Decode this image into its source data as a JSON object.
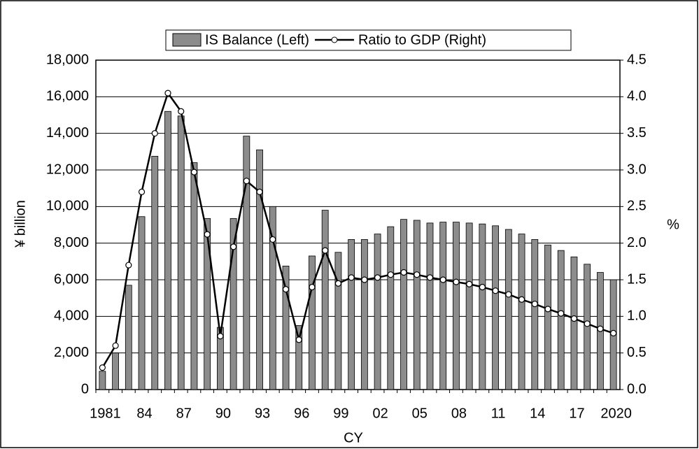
{
  "chart_data": {
    "type": "bar",
    "xlabel": "CY",
    "ylabel": "¥ billion",
    "y2label": "%",
    "categories": [
      "1981",
      null,
      null,
      "84",
      null,
      null,
      "87",
      null,
      null,
      "90",
      null,
      null,
      "93",
      null,
      null,
      "96",
      null,
      null,
      "99",
      null,
      null,
      "02",
      null,
      null,
      "05",
      null,
      null,
      "08",
      null,
      null,
      "11",
      null,
      null,
      "14",
      null,
      null,
      "17",
      null,
      null,
      "2020"
    ],
    "series": [
      {
        "name": "IS Balance (Left)",
        "type": "bar",
        "axis": "y",
        "color": "#8c8c8c",
        "values": [
          1000,
          2000,
          5700,
          9450,
          12750,
          15200,
          14950,
          12400,
          9350,
          3400,
          9350,
          13850,
          13100,
          10000,
          6750,
          3500,
          7300,
          9800,
          7500,
          8200,
          8200,
          8500,
          8900,
          9300,
          9250,
          9100,
          9150,
          9150,
          9100,
          9050,
          8950,
          8750,
          8500,
          8200,
          7900,
          7600,
          7250,
          6850,
          6400,
          6000
        ]
      },
      {
        "name": "Ratio to GDP (Right)",
        "type": "line",
        "axis": "y2",
        "color": "#000000",
        "values": [
          0.3,
          0.6,
          1.7,
          2.7,
          3.5,
          4.05,
          3.8,
          2.97,
          2.12,
          0.73,
          1.95,
          2.85,
          2.7,
          2.05,
          1.37,
          0.68,
          1.4,
          1.9,
          1.45,
          1.53,
          1.5,
          1.53,
          1.57,
          1.6,
          1.57,
          1.53,
          1.5,
          1.47,
          1.44,
          1.4,
          1.35,
          1.3,
          1.23,
          1.17,
          1.1,
          1.04,
          0.97,
          0.9,
          0.83,
          0.77
        ]
      }
    ],
    "ylim": [
      0,
      18000
    ],
    "yticks": [
      0,
      {
        "value": 2000,
        "label": "2,000"
      },
      {
        "value": 4000,
        "label": "4,000"
      },
      {
        "value": 6000,
        "label": "6,000"
      },
      {
        "value": 8000,
        "label": "8,000"
      },
      {
        "value": 10000,
        "label": "10,000"
      },
      {
        "value": 12000,
        "label": "12,000"
      },
      {
        "value": 14000,
        "label": "14,000"
      },
      {
        "value": 16000,
        "label": "16,000"
      },
      {
        "value": 18000,
        "label": "18,000"
      }
    ],
    "y2lim": [
      0,
      4.5
    ],
    "y2ticks": [
      {
        "value": 0,
        "label": "0.0"
      },
      0.5,
      {
        "value": 1,
        "label": "1.0"
      },
      1.5,
      {
        "value": 2,
        "label": "2.0"
      },
      2.5,
      {
        "value": 3,
        "label": "3.0"
      },
      3.5,
      {
        "value": 4,
        "label": "4.0"
      },
      4.5
    ],
    "grid": true,
    "legend": "top"
  }
}
